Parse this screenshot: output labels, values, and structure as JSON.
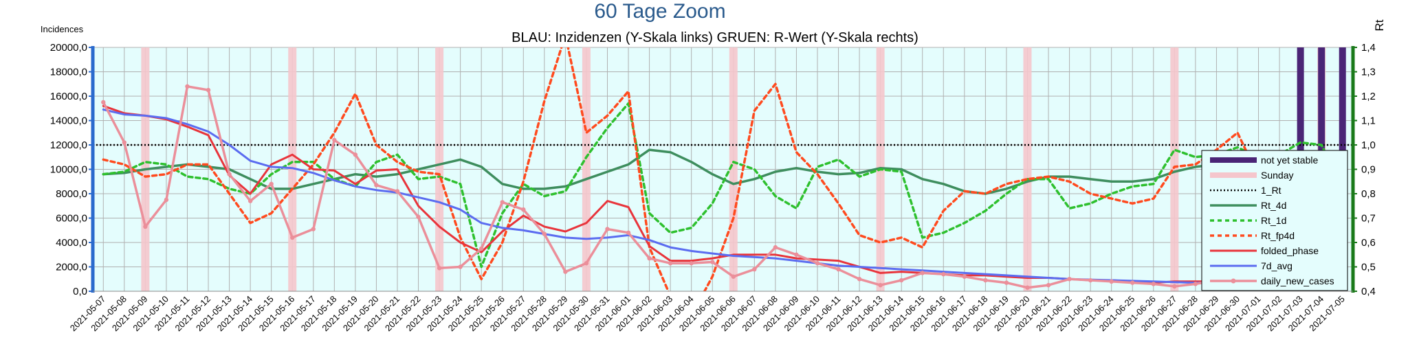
{
  "chart_data": {
    "type": "line",
    "title": "60 Tage Zoom",
    "subtitle": "BLAU: Inzidenzen (Y-Skala links)     GRUEN: R-Wert (Y-Skala rechts)",
    "ylabel": "Incidences",
    "y2label": "Rt",
    "ylim": [
      0,
      20000
    ],
    "y2lim": [
      0.4,
      1.4
    ],
    "y_ticks": [
      "0,0",
      "2000,0",
      "4000,0",
      "6000,0",
      "8000,0",
      "10000,0",
      "12000,0",
      "14000,0",
      "16000,0",
      "18000,0",
      "20000,0"
    ],
    "y2_ticks": [
      "0,4",
      "0,5",
      "0,6",
      "0,7",
      "0,8",
      "0,9",
      "1,0",
      "1,1",
      "1,2",
      "1,3",
      "1,4"
    ],
    "grid": true,
    "legend_position": "bottom-right",
    "background_color": "#e4fdfd",
    "x": [
      "2021-05-07",
      "2021-05-08",
      "2021-05-09",
      "2021-05-10",
      "2021-05-11",
      "2021-05-12",
      "2021-05-13",
      "2021-05-14",
      "2021-05-15",
      "2021-05-16",
      "2021-05-17",
      "2021-05-18",
      "2021-05-19",
      "2021-05-20",
      "2021-05-21",
      "2021-05-22",
      "2021-05-23",
      "2021-05-24",
      "2021-05-25",
      "2021-05-26",
      "2021-05-27",
      "2021-05-28",
      "2021-05-29",
      "2021-05-30",
      "2021-05-31",
      "2021-06-01",
      "2021-06-02",
      "2021-06-03",
      "2021-06-04",
      "2021-06-05",
      "2021-06-06",
      "2021-06-07",
      "2021-06-08",
      "2021-06-09",
      "2021-06-10",
      "2021-06-11",
      "2021-06-12",
      "2021-06-13",
      "2021-06-14",
      "2021-06-15",
      "2021-06-16",
      "2021-06-17",
      "2021-06-18",
      "2021-06-19",
      "2021-06-20",
      "2021-06-21",
      "2021-06-22",
      "2021-06-23",
      "2021-06-24",
      "2021-06-25",
      "2021-06-26",
      "2021-06-27",
      "2021-06-28",
      "2021-06-29",
      "2021-06-30",
      "2021-07-01",
      "2021-07-02",
      "2021-07-03",
      "2021-07-04",
      "2021-07-05"
    ],
    "sunday_dates": [
      "2021-05-09",
      "2021-05-16",
      "2021-05-23",
      "2021-05-30",
      "2021-06-06",
      "2021-06-13",
      "2021-06-20",
      "2021-06-27",
      "2021-07-04"
    ],
    "not_yet_stable_dates": [
      "2021-07-03",
      "2021-07-04",
      "2021-07-05"
    ],
    "reference_line": {
      "name": "1_Rt",
      "axis": "right",
      "value": 1.0
    },
    "series": [
      {
        "name": "Rt_4d",
        "axis": "right",
        "color": "#3e8e5e",
        "style": "solid",
        "width": 3.5,
        "values": [
          0.88,
          0.885,
          0.9,
          0.91,
          0.92,
          0.91,
          0.9,
          0.86,
          0.82,
          0.82,
          0.84,
          0.86,
          0.88,
          0.87,
          0.88,
          0.9,
          0.92,
          0.94,
          0.91,
          0.84,
          0.82,
          0.82,
          0.83,
          0.86,
          0.89,
          0.92,
          0.98,
          0.97,
          0.93,
          0.88,
          0.84,
          0.86,
          0.89,
          0.905,
          0.89,
          0.88,
          0.885,
          0.905,
          0.9,
          0.86,
          0.84,
          0.81,
          0.8,
          0.82,
          0.85,
          0.87,
          0.87,
          0.86,
          0.85,
          0.85,
          0.86,
          0.89,
          0.91,
          0.92,
          0.93,
          0.925,
          0.93,
          0.95,
          0.95,
          0.95
        ]
      },
      {
        "name": "Rt_1d",
        "axis": "right",
        "color": "#2ec02e",
        "style": "dashed",
        "width": 3.5,
        "values": [
          0.88,
          0.89,
          0.93,
          0.92,
          0.87,
          0.86,
          0.82,
          0.8,
          0.88,
          0.93,
          0.93,
          0.86,
          0.83,
          0.93,
          0.96,
          0.86,
          0.87,
          0.84,
          0.5,
          0.72,
          0.84,
          0.79,
          0.81,
          0.95,
          1.07,
          1.17,
          0.72,
          0.64,
          0.66,
          0.76,
          0.93,
          0.9,
          0.79,
          0.74,
          0.91,
          0.94,
          0.87,
          0.9,
          0.89,
          0.62,
          0.64,
          0.68,
          0.73,
          0.8,
          0.86,
          0.86,
          0.74,
          0.76,
          0.8,
          0.83,
          0.84,
          0.98,
          0.95,
          0.96,
          0.99,
          0.95,
          0.96,
          1.01,
          1.0,
          0.82
        ]
      },
      {
        "name": "Rt_fp4d",
        "axis": "right",
        "color": "#ff4a1e",
        "style": "dashed",
        "width": 3.5,
        "values": [
          0.94,
          0.92,
          0.87,
          0.88,
          0.92,
          0.92,
          0.8,
          0.68,
          0.72,
          0.82,
          0.92,
          1.05,
          1.21,
          1.0,
          0.93,
          0.89,
          0.88,
          0.62,
          0.45,
          0.6,
          0.85,
          1.18,
          1.45,
          1.05,
          1.12,
          1.22,
          0.58,
          0.38,
          0.3,
          0.46,
          0.7,
          1.14,
          1.25,
          0.97,
          0.88,
          0.76,
          0.63,
          0.6,
          0.62,
          0.58,
          0.73,
          0.81,
          0.8,
          0.84,
          0.86,
          0.87,
          0.85,
          0.8,
          0.78,
          0.76,
          0.78,
          0.91,
          0.92,
          0.98,
          1.05,
          0.87,
          0.86,
          0.88,
          0.87,
          0.7
        ]
      },
      {
        "name": "folded_phase",
        "axis": "left",
        "color": "#e8343b",
        "style": "solid",
        "width": 3,
        "values": [
          15200,
          14600,
          14400,
          14100,
          13500,
          12800,
          9500,
          8000,
          10400,
          11200,
          10000,
          9900,
          8800,
          9900,
          10000,
          7000,
          5300,
          4000,
          3200,
          4900,
          6200,
          5300,
          4900,
          5600,
          7400,
          6900,
          3700,
          2500,
          2500,
          2700,
          3000,
          3000,
          3000,
          2700,
          2600,
          2500,
          2000,
          1500,
          1600,
          1500,
          1400,
          1300,
          1300,
          1200,
          1100,
          1100,
          1000,
          900,
          900,
          800,
          700,
          800,
          800,
          800,
          800,
          800,
          700,
          600,
          500,
          300
        ]
      },
      {
        "name": "7d_avg",
        "axis": "left",
        "color": "#5b6cf0",
        "style": "solid",
        "width": 3,
        "values": [
          14900,
          14500,
          14400,
          14200,
          13700,
          13100,
          12000,
          10700,
          10200,
          10100,
          9700,
          9100,
          8600,
          8300,
          8100,
          7700,
          7300,
          6700,
          5600,
          5200,
          5000,
          4700,
          4400,
          4300,
          4400,
          4600,
          4200,
          3600,
          3300,
          3100,
          2900,
          2800,
          2700,
          2500,
          2300,
          2100,
          2000,
          1900,
          1800,
          1700,
          1600,
          1500,
          1400,
          1300,
          1200,
          1100,
          1000,
          950,
          900,
          850,
          800,
          750,
          700,
          700,
          650,
          650,
          600,
          550,
          500,
          300
        ]
      },
      {
        "name": "daily_new_cases",
        "axis": "left",
        "color": "#eb8f9a",
        "style": "solid",
        "width": 3.5,
        "markers": true,
        "values": [
          15500,
          12200,
          5300,
          7500,
          16800,
          16500,
          9600,
          7400,
          8800,
          4400,
          5100,
          12400,
          11200,
          8700,
          8200,
          6100,
          1900,
          2000,
          3500,
          7300,
          6700,
          4700,
          1600,
          2300,
          5100,
          4800,
          2700,
          2300,
          2300,
          2400,
          1200,
          1800,
          3600,
          3000,
          2300,
          1800,
          1000,
          500,
          900,
          1500,
          1400,
          1200,
          900,
          700,
          300,
          500,
          1000,
          900,
          800,
          700,
          600,
          400,
          600,
          900,
          900,
          800,
          800,
          800,
          500,
          300
        ]
      }
    ],
    "legend": [
      "not yet stable",
      "Sunday",
      "1_Rt",
      "Rt_4d",
      "Rt_1d",
      "Rt_fp4d",
      "folded_phase",
      "7d_avg",
      "daily_new_cases"
    ],
    "colors": {
      "not_yet_stable": "#4a2576",
      "sunday": "#f5c6cc",
      "ref_line": "#000000",
      "left_axis": "#2a6acd",
      "right_axis": "#1a7a1a",
      "grid": "#b0b0b0"
    }
  }
}
